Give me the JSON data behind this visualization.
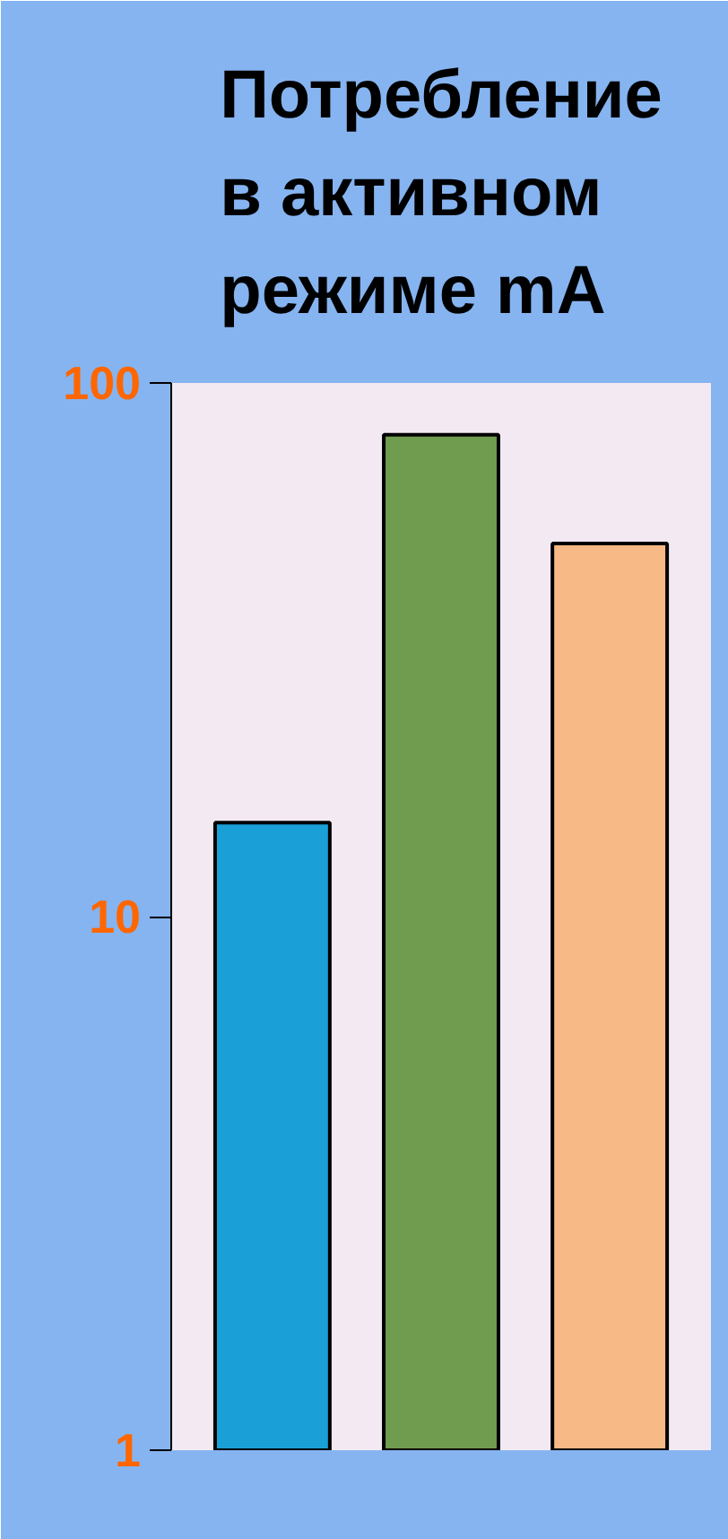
{
  "chart_data": {
    "type": "bar",
    "title": "Потребление в активном режиме mA",
    "categories": [
      null,
      null,
      null
    ],
    "values": [
      15,
      80,
      50
    ],
    "colors": [
      "#1a9fd6",
      "#6f9c4e",
      "#f7b985"
    ],
    "log": true,
    "ylim": [
      1,
      100
    ],
    "yticks": [
      1,
      10,
      100
    ],
    "grid": false
  }
}
